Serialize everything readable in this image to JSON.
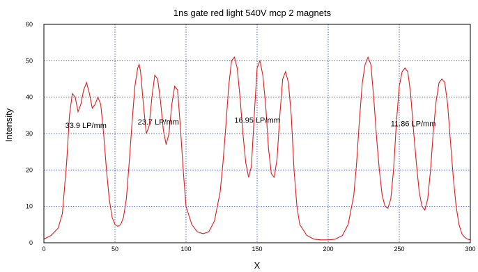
{
  "chart_data": {
    "type": "line",
    "title": "1ns gate red light 540V mcp 2 magnets",
    "xlabel": "X",
    "ylabel": "Intensity",
    "xlim": [
      0,
      300
    ],
    "ylim": [
      0,
      60
    ],
    "xticks": [
      0,
      50,
      100,
      150,
      200,
      250,
      300
    ],
    "yticks": [
      0,
      10,
      20,
      30,
      40,
      50,
      60
    ],
    "grid": true,
    "colors": {
      "series": "#e31b1b",
      "grid": "#1f3fbf",
      "frame": "#000000"
    },
    "annotations": [
      {
        "text": "33.9 LP/mm",
        "x": 15,
        "y": 31.5
      },
      {
        "text": "23.7 LP/mm",
        "x": 66,
        "y": 32.5
      },
      {
        "text": "16.95 LP/mm",
        "x": 134,
        "y": 33
      },
      {
        "text": "11.86 LP/mm",
        "x": 244,
        "y": 32
      }
    ],
    "series": [
      {
        "x": [
          0,
          5,
          10,
          13,
          16,
          18,
          20,
          22,
          24,
          26,
          28,
          30,
          32,
          34,
          36,
          38,
          40,
          42,
          44,
          46,
          48,
          50,
          52,
          54,
          56,
          58,
          60,
          62,
          64,
          66,
          67,
          68,
          70,
          72,
          74,
          76,
          78,
          80,
          82,
          84,
          86,
          88,
          90,
          92,
          94,
          96,
          98,
          100,
          104,
          108,
          112,
          116,
          120,
          124,
          126,
          128,
          130,
          132,
          134,
          136,
          138,
          140,
          142,
          144,
          146,
          148,
          150,
          152,
          154,
          156,
          158,
          160,
          162,
          164,
          166,
          168,
          170,
          172,
          174,
          176,
          178,
          180,
          185,
          190,
          195,
          200,
          205,
          210,
          214,
          218,
          220,
          222,
          224,
          226,
          228,
          230,
          232,
          234,
          236,
          238,
          240,
          242,
          244,
          246,
          248,
          250,
          252,
          254,
          256,
          258,
          260,
          262,
          264,
          266,
          268,
          270,
          272,
          274,
          276,
          278,
          280,
          282,
          284,
          286,
          288,
          290,
          292,
          294,
          296,
          298,
          300
        ],
        "values": [
          1,
          2,
          4,
          8,
          22,
          35,
          41,
          40,
          36,
          38,
          42,
          44,
          41,
          37,
          38,
          40,
          38,
          30,
          20,
          12,
          7,
          5,
          4.5,
          5,
          7,
          12,
          22,
          33,
          43,
          48,
          49,
          47,
          38,
          30,
          32,
          40,
          46,
          45,
          39,
          31,
          27,
          30,
          38,
          43,
          42,
          32,
          20,
          10,
          5,
          3,
          2.5,
          3,
          6,
          14,
          22,
          32,
          43,
          50,
          51,
          48,
          40,
          30,
          22,
          18,
          21,
          35,
          48,
          50,
          46,
          38,
          26,
          19,
          18,
          23,
          35,
          45,
          47,
          44,
          35,
          20,
          10,
          5,
          2,
          1,
          0.8,
          0.8,
          1,
          2,
          5,
          13,
          22,
          34,
          44,
          49,
          51,
          49,
          40,
          29,
          20,
          13,
          10,
          9.5,
          12,
          20,
          33,
          43,
          47,
          48,
          47,
          41,
          31,
          22,
          14,
          10,
          9,
          12,
          20,
          31,
          39,
          44,
          45,
          44,
          38,
          28,
          18,
          10,
          5,
          2.5,
          1.5,
          1,
          0.8
        ]
      }
    ]
  }
}
